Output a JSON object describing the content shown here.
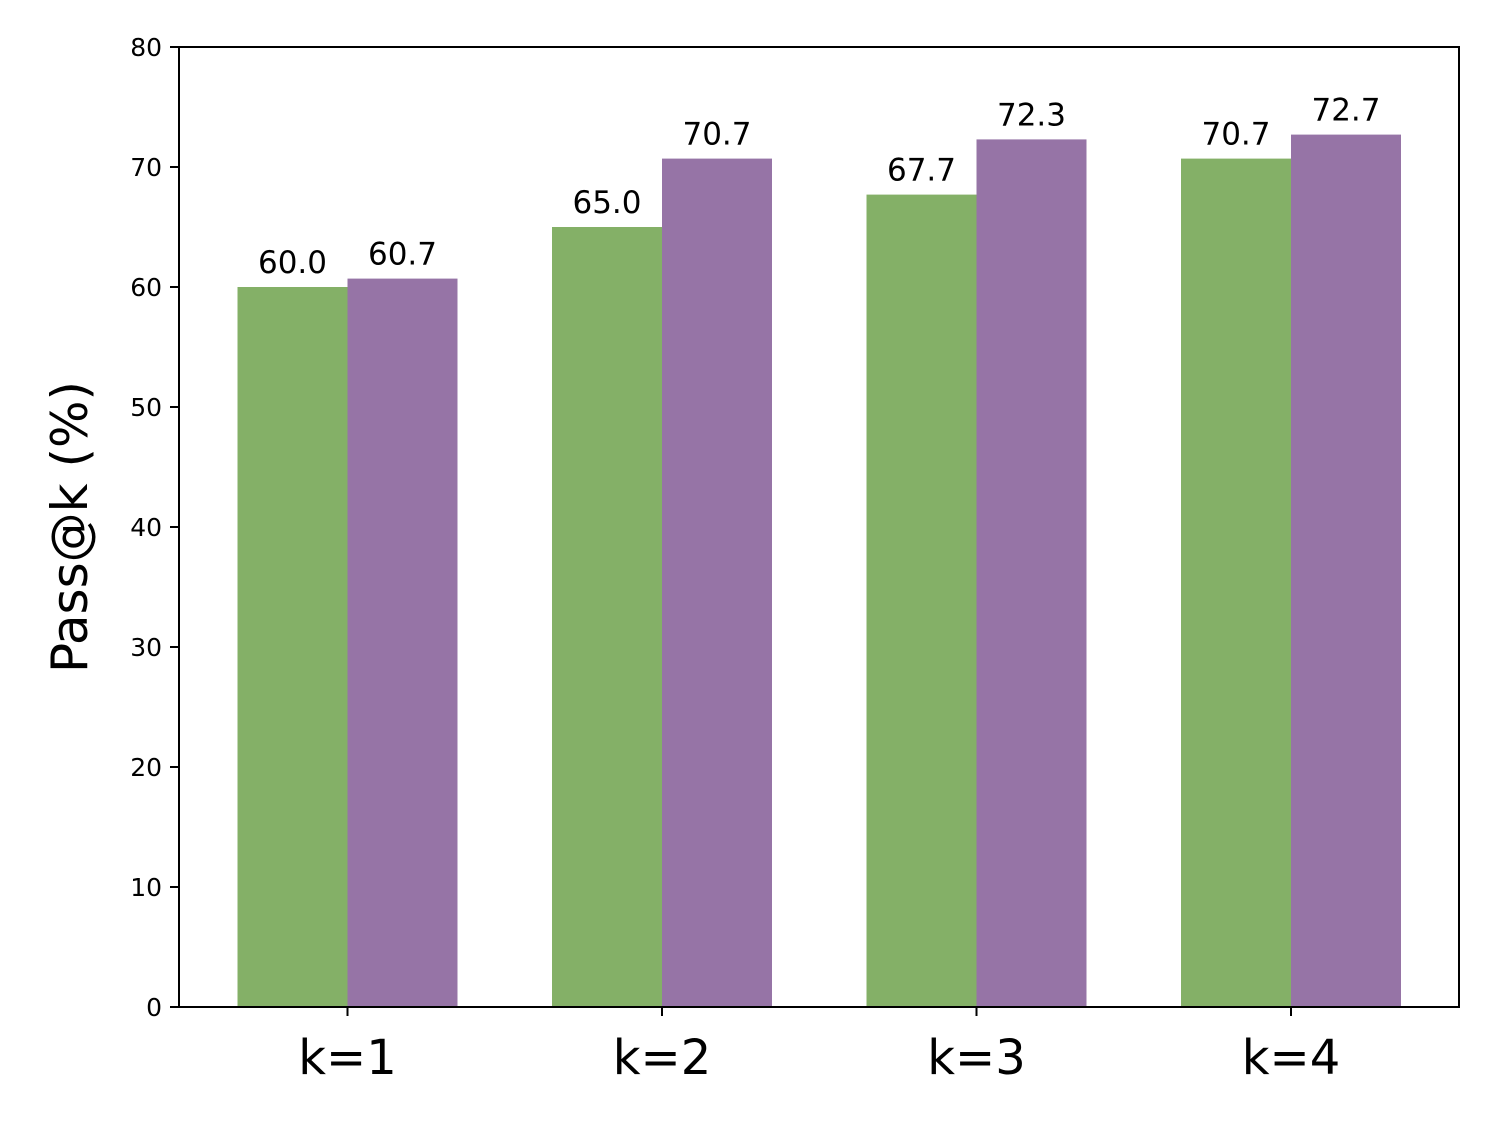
{
  "chart_data": {
    "type": "bar",
    "title": "",
    "xlabel": "",
    "ylabel": "Pass@k (%)",
    "categories": [
      "k=1",
      "k=2",
      "k=3",
      "k=4"
    ],
    "series": [
      {
        "values": [
          60.0,
          65.0,
          67.7,
          70.7
        ],
        "color": "#84b067",
        "labels": [
          "60.0",
          "65.0",
          "67.7",
          "70.7"
        ]
      },
      {
        "values": [
          60.7,
          70.7,
          72.3,
          72.7
        ],
        "color": "#9674a6",
        "labels": [
          "60.7",
          "70.7",
          "72.3",
          "72.7"
        ]
      }
    ],
    "ylim": [
      0,
      80
    ],
    "yticks": [
      0,
      10,
      20,
      30,
      40,
      50,
      60,
      70,
      80
    ],
    "ytick_labels": [
      "0",
      "10",
      "20",
      "30",
      "40",
      "50",
      "60",
      "70",
      "80"
    ],
    "grid": false,
    "legend": "none"
  }
}
